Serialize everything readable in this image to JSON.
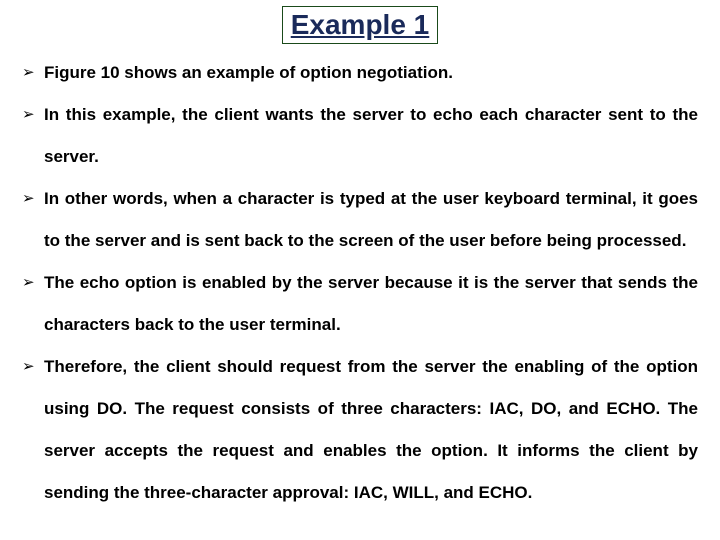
{
  "title": "Example 1",
  "title_color": "#1a2a5a",
  "title_fontsize": 28,
  "title_border_color": "#1a4a1a",
  "bullet_glyph": "➢",
  "bullets": [
    "Figure 10 shows an example of option negotiation.",
    "In this example, the client wants the server to echo each character sent to the server.",
    "In other words, when a character is typed at the user keyboard terminal, it goes to the server and is sent back to the screen of the user before being processed.",
    "The echo option is enabled by the server because it is the server that sends the characters back to the user terminal.",
    " Therefore, the client should request from the server the enabling of the option using DO. The request consists of three characters: IAC, DO, and ECHO. The server accepts the request and enables the option. It informs the client by sending the three-character approval: IAC, WILL, and ECHO."
  ],
  "body_fontsize": 17,
  "body_line_height": 42,
  "background_color": "#ffffff"
}
